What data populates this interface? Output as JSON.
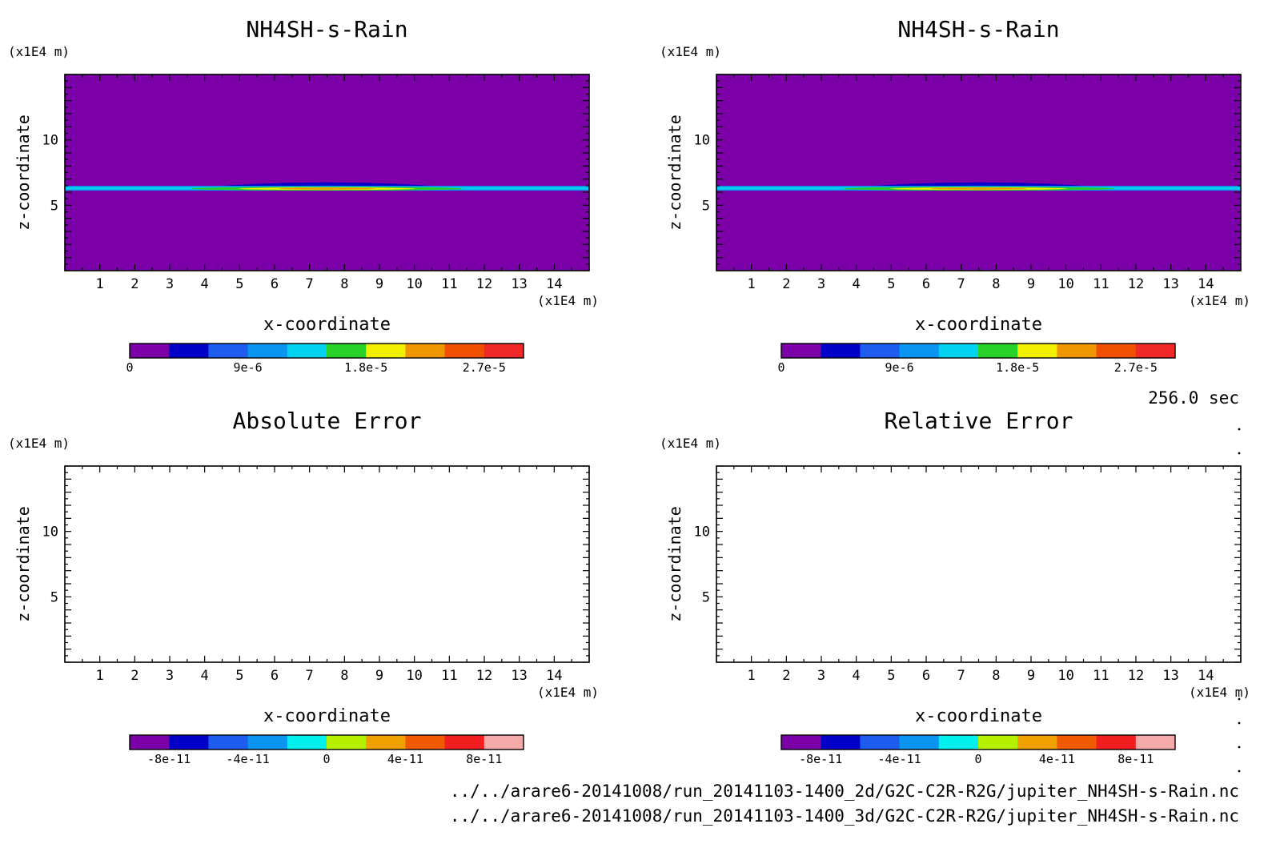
{
  "time_label": "256.0 sec",
  "file_paths": [
    "../../arare6-20141008/run_20141103-1400_2d/G2C-C2R-R2G/jupiter_NH4SH-s-Rain.nc",
    "../../arare6-20141008/run_20141103-1400_3d/G2C-C2R-R2G/jupiter_NH4SH-s-Rain.nc"
  ],
  "colors": {
    "background_field": "#7b00a8",
    "palette_field": [
      "#7b00a8",
      "#0000c8",
      "#1e5cf0",
      "#0a96f0",
      "#00d2f0",
      "#28d228",
      "#f0f000",
      "#f09600",
      "#f05000",
      "#f02828"
    ],
    "palette_error": [
      "#7b00a8",
      "#0000c8",
      "#1e5cf0",
      "#0a96f0",
      "#00f0f0",
      "#b4f000",
      "#f0a000",
      "#f05a00",
      "#f01e1e",
      "#f5aaaa"
    ]
  },
  "chart_data": [
    {
      "type": "heatmap",
      "title": "NH4SH-s-Rain",
      "xlabel": "x-coordinate",
      "ylabel": "z-coordinate",
      "x_unit": "(x1E4 m)",
      "y_unit": "(x1E4 m)",
      "x_ticks": [
        "1",
        "2",
        "3",
        "4",
        "5",
        "6",
        "7",
        "8",
        "9",
        "10",
        "11",
        "12",
        "13",
        "14"
      ],
      "y_ticks": [
        "5",
        "10"
      ],
      "xlim": [
        0,
        15
      ],
      "ylim": [
        0,
        15
      ],
      "field": {
        "layer_z": 6.3,
        "bump_x_range": [
          3.3,
          11.7
        ],
        "bump_center_x": 7.5,
        "bump_top_z": 6.9,
        "peak_value": 2.8e-05
      },
      "colorbar": {
        "ticks": [
          "0",
          "9e-6",
          "1.8e-5",
          "2.7e-5"
        ],
        "min": 0,
        "max": 3e-05,
        "levels": 10
      }
    },
    {
      "type": "heatmap",
      "title": "NH4SH-s-Rain",
      "xlabel": "x-coordinate",
      "ylabel": "z-coordinate",
      "x_unit": "(x1E4 m)",
      "y_unit": "(x1E4 m)",
      "x_ticks": [
        "1",
        "2",
        "3",
        "4",
        "5",
        "6",
        "7",
        "8",
        "9",
        "10",
        "11",
        "12",
        "13",
        "14"
      ],
      "y_ticks": [
        "5",
        "10"
      ],
      "xlim": [
        0,
        15
      ],
      "ylim": [
        0,
        15
      ],
      "field": {
        "layer_z": 6.3,
        "bump_x_range": [
          3.3,
          11.7
        ],
        "bump_center_x": 7.5,
        "bump_top_z": 6.9,
        "peak_value": 2.8e-05
      },
      "colorbar": {
        "ticks": [
          "0",
          "9e-6",
          "1.8e-5",
          "2.7e-5"
        ],
        "min": 0,
        "max": 3e-05,
        "levels": 10
      }
    },
    {
      "type": "heatmap",
      "title": "Absolute Error",
      "xlabel": "x-coordinate",
      "ylabel": "z-coordinate",
      "x_unit": "(x1E4 m)",
      "y_unit": "(x1E4 m)",
      "x_ticks": [
        "1",
        "2",
        "3",
        "4",
        "5",
        "6",
        "7",
        "8",
        "9",
        "10",
        "11",
        "12",
        "13",
        "14"
      ],
      "y_ticks": [
        "5",
        "10"
      ],
      "xlim": [
        0,
        15
      ],
      "ylim": [
        0,
        15
      ],
      "field": null,
      "colorbar": {
        "ticks": [
          "-8e-11",
          "-4e-11",
          "0",
          "4e-11",
          "8e-11"
        ],
        "min": -1e-10,
        "max": 1e-10,
        "levels": 10
      }
    },
    {
      "type": "heatmap",
      "title": "Relative Error",
      "xlabel": "x-coordinate",
      "ylabel": "z-coordinate",
      "x_unit": "(x1E4 m)",
      "y_unit": "(x1E4 m)",
      "x_ticks": [
        "1",
        "2",
        "3",
        "4",
        "5",
        "6",
        "7",
        "8",
        "9",
        "10",
        "11",
        "12",
        "13",
        "14"
      ],
      "y_ticks": [
        "5",
        "10"
      ],
      "xlim": [
        0,
        15
      ],
      "ylim": [
        0,
        15
      ],
      "field": null,
      "colorbar": {
        "ticks": [
          "-8e-11",
          "-4e-11",
          "0",
          "4e-11",
          "8e-11"
        ],
        "min": -1e-10,
        "max": 1e-10,
        "levels": 10
      }
    }
  ]
}
